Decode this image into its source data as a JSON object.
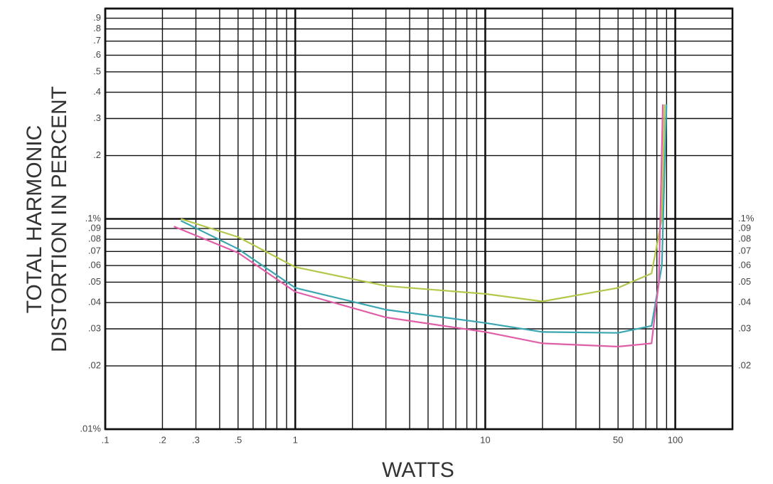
{
  "chart_data": {
    "type": "line",
    "x_label": "WATTS",
    "y_label": [
      "TOTAL HARMONIC",
      "DISTORTION IN PERCENT"
    ],
    "xscale": "log",
    "yscale": "log",
    "xlim": [
      0.1,
      200
    ],
    "ylim": [
      0.01,
      1
    ],
    "y2lim": [
      0.01,
      1
    ],
    "xticks": [
      {
        "value": 0.1,
        "label": ".1"
      },
      {
        "value": 0.2,
        "label": ".2"
      },
      {
        "value": 0.3,
        "label": ".3"
      },
      {
        "value": 0.5,
        "label": ".5"
      },
      1,
      10,
      50,
      100
    ],
    "yticks": [
      {
        "value": 0.01,
        "label": ".01%"
      },
      {
        "value": 0.02,
        "label": ".02"
      },
      {
        "value": 0.03,
        "label": ".03"
      },
      {
        "value": 0.04,
        "label": ".04"
      },
      {
        "value": 0.05,
        "label": ".05"
      },
      {
        "value": 0.06,
        "label": ".06"
      },
      {
        "value": 0.07,
        "label": ".07"
      },
      {
        "value": 0.08,
        "label": ".08"
      },
      {
        "value": 0.09,
        "label": ".09"
      },
      {
        "value": 0.1,
        "label": ".1%"
      },
      {
        "value": 0.2,
        "label": ".2"
      },
      {
        "value": 0.3,
        "label": ".3"
      },
      {
        "value": 0.4,
        "label": ".4"
      },
      {
        "value": 0.5,
        "label": ".5"
      },
      {
        "value": 0.6,
        "label": ".6"
      },
      {
        "value": 0.7,
        "label": ".7"
      },
      {
        "value": 0.8,
        "label": ".8"
      },
      {
        "value": 0.9,
        "label": ".9"
      }
    ],
    "y2ticks": [
      {
        "value": 0.02,
        "label": ".02"
      },
      {
        "value": 0.03,
        "label": ".03"
      },
      {
        "value": 0.04,
        "label": ".04"
      },
      {
        "value": 0.05,
        "label": ".05"
      },
      {
        "value": 0.06,
        "label": ".06"
      },
      {
        "value": 0.07,
        "label": ".07"
      },
      {
        "value": 0.08,
        "label": ".08"
      },
      {
        "value": 0.09,
        "label": ".09"
      },
      {
        "value": 0.1,
        "label": ".1%"
      }
    ],
    "x_gridlines": [
      0.1,
      0.2,
      0.3,
      0.4,
      0.5,
      0.6,
      0.7,
      0.8,
      0.9,
      1,
      2,
      3,
      4,
      5,
      6,
      7,
      8,
      9,
      10,
      20,
      30,
      40,
      50,
      60,
      70,
      80,
      90,
      100,
      200
    ],
    "y_gridlines": [
      0.01,
      0.02,
      0.03,
      0.04,
      0.05,
      0.06,
      0.07,
      0.08,
      0.09,
      0.1,
      0.2,
      0.3,
      0.4,
      0.5,
      0.6,
      0.7,
      0.8,
      0.9,
      1
    ],
    "grid": true,
    "series": [
      {
        "color": "#b5c64a",
        "x": [
          0.25,
          0.5,
          1,
          3,
          10,
          20,
          50,
          75,
          85,
          88
        ],
        "values": [
          0.1,
          0.082,
          0.059,
          0.048,
          0.044,
          0.0405,
          0.047,
          0.055,
          0.1,
          0.35
        ]
      },
      {
        "color": "#3aa6b2",
        "x": [
          0.25,
          0.5,
          1,
          3,
          10,
          20,
          50,
          75,
          85,
          90
        ],
        "values": [
          0.098,
          0.072,
          0.047,
          0.037,
          0.032,
          0.029,
          0.0287,
          0.031,
          0.06,
          0.35
        ]
      },
      {
        "color": "#e05ea8",
        "x": [
          0.23,
          0.5,
          1,
          3,
          10,
          20,
          50,
          75,
          82,
          86
        ],
        "values": [
          0.092,
          0.069,
          0.045,
          0.034,
          0.029,
          0.0256,
          0.0247,
          0.0256,
          0.05,
          0.35
        ]
      }
    ]
  }
}
